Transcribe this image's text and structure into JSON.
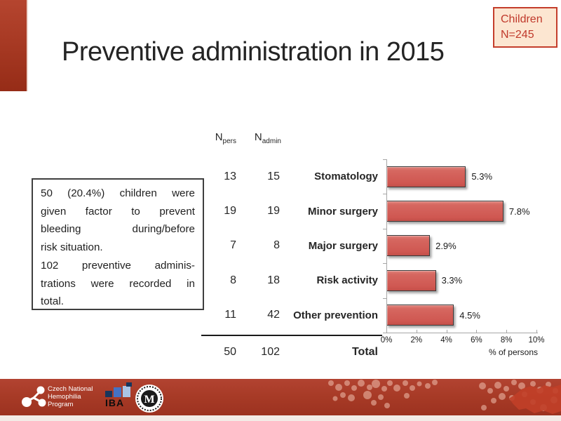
{
  "slide": {
    "title": "Preventive administration in 2015"
  },
  "badge": {
    "line1": "Children",
    "line2": "N=245"
  },
  "note_box": {
    "lines": [
      {
        "text": "50 (20.4%) children were",
        "justify": true
      },
      {
        "text": "given factor to prevent",
        "justify": true
      },
      {
        "text": "bleeding during/before",
        "justify": true
      },
      {
        "text": "risk situation.",
        "justify": false
      },
      {
        "text": "102 preventive adminis-",
        "justify": true
      },
      {
        "text": "trations were recorded in",
        "justify": true
      },
      {
        "text": "total.",
        "justify": false
      }
    ]
  },
  "table": {
    "headers": [
      {
        "base": "N",
        "sub": "pers"
      },
      {
        "base": "N",
        "sub": "admin"
      }
    ],
    "rows": [
      {
        "n_pers": "13",
        "n_admin": "15",
        "category": "Stomatology"
      },
      {
        "n_pers": "19",
        "n_admin": "19",
        "category": "Minor surgery"
      },
      {
        "n_pers": "7",
        "n_admin": "8",
        "category": "Major surgery"
      },
      {
        "n_pers": "8",
        "n_admin": "18",
        "category": "Risk activity"
      },
      {
        "n_pers": "11",
        "n_admin": "42",
        "category": "Other prevention"
      }
    ],
    "total": {
      "n_pers": "50",
      "n_admin": "102",
      "label": "Total"
    }
  },
  "chart_data": {
    "type": "bar",
    "orientation": "horizontal",
    "categories": [
      "Stomatology",
      "Minor surgery",
      "Major surgery",
      "Risk activity",
      "Other prevention"
    ],
    "values": [
      5.3,
      7.8,
      2.9,
      3.3,
      4.5
    ],
    "value_labels": [
      "5.3%",
      "7.8%",
      "2.9%",
      "3.3%",
      "4.5%"
    ],
    "xlabel": "% of persons",
    "x_ticks": [
      "0%",
      "2%",
      "4%",
      "6%",
      "8%",
      "10%"
    ],
    "xlim": [
      0,
      10
    ],
    "grid": false,
    "legend": false,
    "bar_color": "#d2615a",
    "axis_color": "#a6a6a6"
  },
  "footer": {
    "org_lines": [
      "Czech National",
      "Hemophilia",
      "Program"
    ],
    "iba_label": "IBA",
    "iba_mu_label": "MU",
    "band_color": "#a73a26"
  }
}
